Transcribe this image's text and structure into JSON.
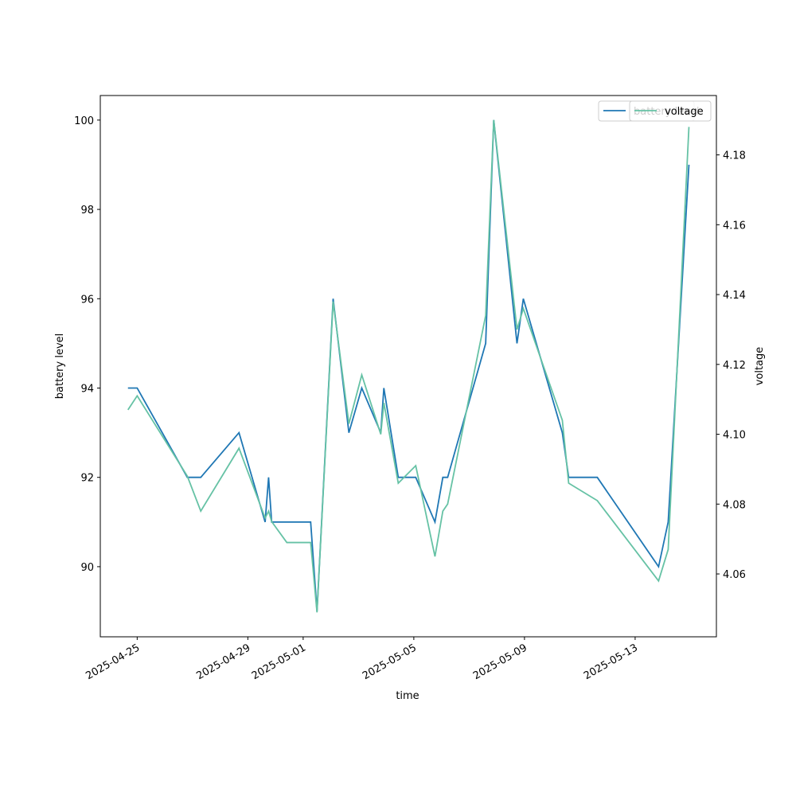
{
  "chart_data": {
    "type": "line",
    "x": [
      "2025-04-24 16:00",
      "2025-04-25 00:00",
      "2025-04-26 19:30",
      "2025-04-27 07:10",
      "2025-04-28 16:20",
      "2025-04-29 15:00",
      "2025-04-29 18:00",
      "2025-04-29 20:40",
      "2025-04-30 09:50",
      "2025-05-01 06:30",
      "2025-05-01 12:00",
      "2025-05-02 02:00",
      "2025-05-02 15:40",
      "2025-05-03 02:50",
      "2025-05-03 19:20",
      "2025-05-03 22:00",
      "2025-05-04 10:30",
      "2025-05-05 01:40",
      "2025-05-05 18:20",
      "2025-05-06 01:10",
      "2025-05-06 05:20",
      "2025-05-07 14:20",
      "2025-05-07 21:20",
      "2025-05-08 17:30",
      "2025-05-08 23:00",
      "2025-05-10 08:50",
      "2025-05-10 14:20",
      "2025-05-11 15:10",
      "2025-05-13 20:20",
      "2025-05-14 04:40",
      "2025-05-14 22:40"
    ],
    "series": [
      {
        "name": "battery level",
        "color": "#1f77b4",
        "axis": "y",
        "values": [
          94,
          94,
          92,
          92,
          93,
          91,
          92,
          91,
          91,
          91,
          89,
          96,
          93,
          94,
          93,
          94,
          92,
          92,
          91,
          92,
          92,
          95,
          100,
          95,
          96,
          93,
          92,
          92,
          90,
          91,
          99
        ]
      },
      {
        "name": "voltage",
        "color": "#66c2a5",
        "axis": "y2",
        "values": [
          4.107,
          4.111,
          4.088,
          4.078,
          4.096,
          4.076,
          4.078,
          4.075,
          4.069,
          4.069,
          4.049,
          4.138,
          4.103,
          4.117,
          4.1,
          4.109,
          4.086,
          4.091,
          4.065,
          4.078,
          4.08,
          4.134,
          4.19,
          4.13,
          4.136,
          4.104,
          4.086,
          4.081,
          4.058,
          4.067,
          4.188
        ]
      }
    ],
    "xlabel": "time",
    "ylabel": "battery level",
    "y2label": "voltage",
    "xlim": [
      "2025-04-23 16:00",
      "2025-05-15 22:30"
    ],
    "xticks": [
      "2025-04-25",
      "2025-04-29",
      "2025-05-01",
      "2025-05-05",
      "2025-05-09",
      "2025-05-13"
    ],
    "ylim": [
      88.43,
      100.55
    ],
    "yticks": [
      90,
      92,
      94,
      96,
      98,
      100
    ],
    "y2lim": [
      4.042,
      4.197
    ],
    "y2ticks": [
      4.06,
      4.08,
      {
        "value": 4.1,
        "label": "4.10"
      },
      4.12,
      4.14,
      4.16,
      4.18
    ],
    "legend": "upper right"
  }
}
